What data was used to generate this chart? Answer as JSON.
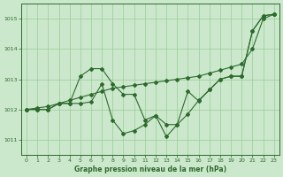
{
  "xlabel": "Graphe pression niveau de la mer (hPa)",
  "xlim": [
    -0.5,
    23.5
  ],
  "ylim": [
    1010.5,
    1015.5
  ],
  "yticks": [
    1011,
    1012,
    1013,
    1014,
    1015
  ],
  "xticks": [
    0,
    1,
    2,
    3,
    4,
    5,
    6,
    7,
    8,
    9,
    10,
    11,
    12,
    13,
    14,
    15,
    16,
    17,
    18,
    19,
    20,
    21,
    22,
    23
  ],
  "bg_color": "#cce8cc",
  "grid_color": "#99cc99",
  "line_color": "#2d6a2d",
  "series_line1": [
    1012.0,
    1012.0,
    1012.0,
    1012.2,
    1012.2,
    1013.1,
    1013.35,
    1013.35,
    1012.85,
    1012.5,
    1012.5,
    1011.65,
    1011.8,
    1011.5,
    1011.5,
    1011.85,
    1012.3,
    1012.65,
    1013.0,
    1013.1,
    1013.1,
    1014.6,
    1015.1,
    1015.15
  ],
  "series_line2": [
    1012.0,
    1012.0,
    1012.0,
    1012.2,
    1012.2,
    1012.2,
    1012.25,
    1012.85,
    1011.65,
    1011.2,
    1011.3,
    1011.5,
    1011.8,
    1011.1,
    1011.5,
    1012.6,
    1012.28,
    1012.65,
    1013.0,
    1013.1,
    1013.1,
    1014.6,
    1015.1,
    1015.15
  ],
  "series_line3": [
    1012.0,
    1012.05,
    1012.1,
    1012.2,
    1012.3,
    1012.4,
    1012.5,
    1012.6,
    1012.7,
    1012.75,
    1012.8,
    1012.85,
    1012.9,
    1012.95,
    1013.0,
    1013.05,
    1013.1,
    1013.2,
    1013.3,
    1013.4,
    1013.5,
    1014.0,
    1015.0,
    1015.15
  ]
}
